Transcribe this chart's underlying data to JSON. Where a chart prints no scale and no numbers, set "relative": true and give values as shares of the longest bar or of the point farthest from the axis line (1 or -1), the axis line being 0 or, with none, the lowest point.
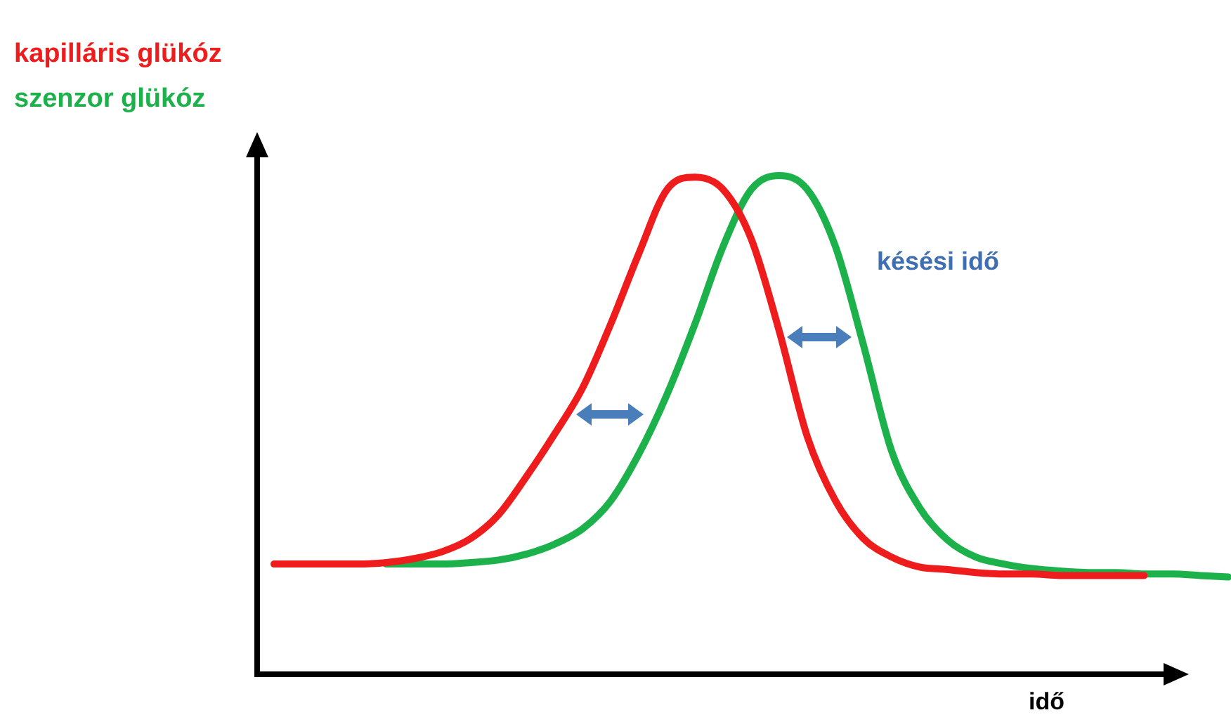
{
  "chart_data": {
    "type": "line",
    "relative": true,
    "xlabel": "idő",
    "legend": "top left",
    "marker": "none",
    "annotations": [
      "késési idő"
    ],
    "categories": [
      null,
      null,
      null,
      null,
      null,
      null,
      null,
      null,
      null,
      null,
      null,
      null,
      null,
      null,
      null,
      null,
      null,
      null,
      null,
      null,
      null,
      null,
      null,
      null,
      null,
      null,
      null,
      null,
      null,
      null,
      null,
      null,
      null,
      null,
      null
    ],
    "series": [
      {
        "name": "kapilláris glükóz",
        "color": "#ee1c1c",
        "values": [
          0.221,
          0.221,
          0.221,
          0.221,
          0.224,
          0.232,
          0.246,
          0.272,
          0.32,
          0.397,
          0.482,
          0.575,
          0.703,
          0.844,
          0.972,
          0.997,
          0.972,
          0.873,
          0.688,
          0.476,
          0.348,
          0.272,
          0.235,
          0.215,
          0.21,
          0.204,
          0.201,
          0.201,
          0.198,
          0.198,
          0.198,
          0.198,
          null,
          null,
          null
        ]
      },
      {
        "name": "szenzor glükóz",
        "color": "#1db14b",
        "values": [
          null,
          null,
          null,
          null,
          0.221,
          0.221,
          0.221,
          0.224,
          0.229,
          0.241,
          0.261,
          0.292,
          0.348,
          0.442,
          0.561,
          0.703,
          0.858,
          0.972,
          1,
          0.972,
          0.858,
          0.66,
          0.448,
          0.334,
          0.269,
          0.235,
          0.221,
          0.212,
          0.207,
          0.204,
          0.204,
          0.201,
          0.201,
          0.198,
          0.195
        ]
      }
    ]
  }
}
